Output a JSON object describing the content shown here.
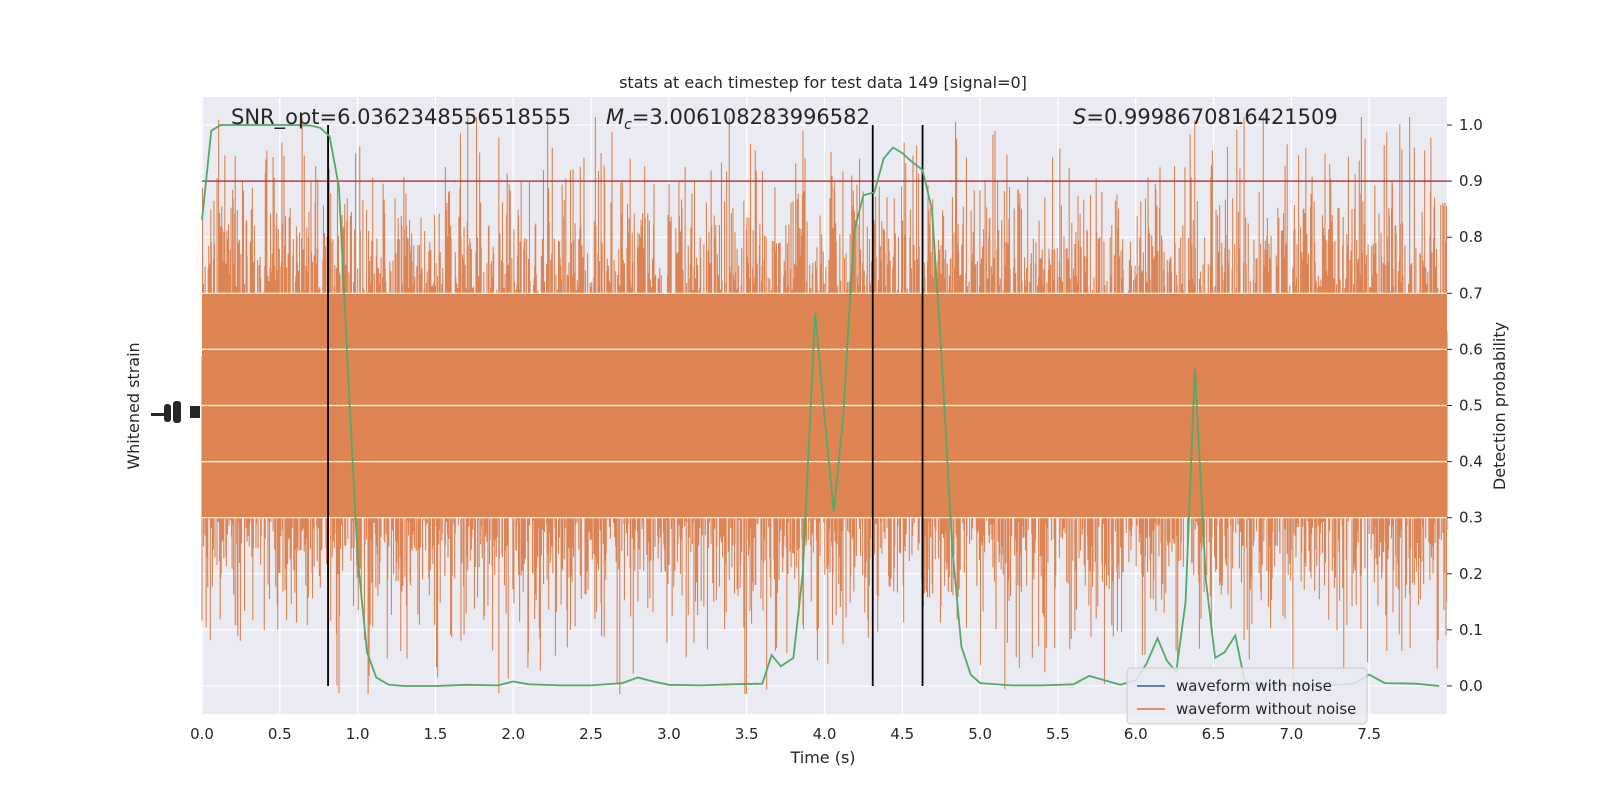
{
  "chart_data": {
    "type": "line",
    "title": "stats at each timestep for test data 149 [signal=0]",
    "xlabel": "Time (s)",
    "ylabel_left": "Whitened strain",
    "ylabel_right": "Detection probability",
    "xlim": [
      0,
      8
    ],
    "ylim_right": [
      -0.05,
      1.05
    ],
    "xticks": [
      "0.0",
      "0.5",
      "1.0",
      "1.5",
      "2.0",
      "2.5",
      "3.0",
      "3.5",
      "4.0",
      "4.5",
      "5.0",
      "5.5",
      "6.0",
      "6.5",
      "7.0",
      "7.5"
    ],
    "yticks_right": [
      "0.0",
      "0.1",
      "0.2",
      "0.3",
      "0.4",
      "0.5",
      "0.6",
      "0.7",
      "0.8",
      "0.9",
      "1.0"
    ],
    "grid": true,
    "legend_position": "lower-right",
    "annotations": {
      "snr": "SNR_opt=6.0362348556518555",
      "mc_symbol": "M",
      "mc_sub": "c",
      "mc_value": "=3.006108283996582",
      "s_symbol": "S",
      "s_value": "=0.9998670816421509"
    },
    "threshold": 0.9,
    "vertical_lines": [
      0.81,
      4.31,
      4.63
    ],
    "series": [
      {
        "name": "waveform with noise",
        "color": "#4c72b0"
      },
      {
        "name": "waveform without noise",
        "color": "#dd8452"
      }
    ],
    "probability": {
      "color": "#55a868",
      "x": [
        0.0,
        0.06,
        0.12,
        0.2,
        0.3,
        0.4,
        0.5,
        0.6,
        0.7,
        0.76,
        0.82,
        0.88,
        0.94,
        1.0,
        1.06,
        1.12,
        1.2,
        1.3,
        1.5,
        1.7,
        1.9,
        2.0,
        2.1,
        2.3,
        2.5,
        2.7,
        2.8,
        2.9,
        3.0,
        3.2,
        3.4,
        3.6,
        3.66,
        3.72,
        3.8,
        3.86,
        3.94,
        4.0,
        4.06,
        4.12,
        4.19,
        4.25,
        4.32,
        4.38,
        4.44,
        4.5,
        4.56,
        4.63,
        4.69,
        4.75,
        4.82,
        4.88,
        4.94,
        5.0,
        5.2,
        5.4,
        5.6,
        5.7,
        5.8,
        5.9,
        6.0,
        6.07,
        6.14,
        6.2,
        6.26,
        6.32,
        6.38,
        6.45,
        6.51,
        6.57,
        6.64,
        6.7,
        6.8,
        7.0,
        7.2,
        7.3,
        7.4,
        7.5,
        7.6,
        7.8,
        7.95
      ],
      "y": [
        0.83,
        0.99,
        1.0,
        1.0,
        1.0,
        1.0,
        1.0,
        1.0,
        0.999,
        0.995,
        0.98,
        0.89,
        0.55,
        0.23,
        0.06,
        0.015,
        0.002,
        0.0,
        0.0,
        0.002,
        0.001,
        0.008,
        0.003,
        0.001,
        0.001,
        0.005,
        0.015,
        0.008,
        0.002,
        0.001,
        0.003,
        0.004,
        0.055,
        0.035,
        0.05,
        0.2,
        0.665,
        0.48,
        0.31,
        0.48,
        0.81,
        0.875,
        0.88,
        0.94,
        0.96,
        0.95,
        0.935,
        0.92,
        0.85,
        0.6,
        0.25,
        0.07,
        0.02,
        0.005,
        0.001,
        0.001,
        0.003,
        0.018,
        0.01,
        0.002,
        0.01,
        0.04,
        0.085,
        0.045,
        0.025,
        0.15,
        0.565,
        0.19,
        0.05,
        0.06,
        0.09,
        0.008,
        0.002,
        0.001,
        0.001,
        0.002,
        0.004,
        0.02,
        0.005,
        0.004,
        0.0
      ]
    }
  }
}
